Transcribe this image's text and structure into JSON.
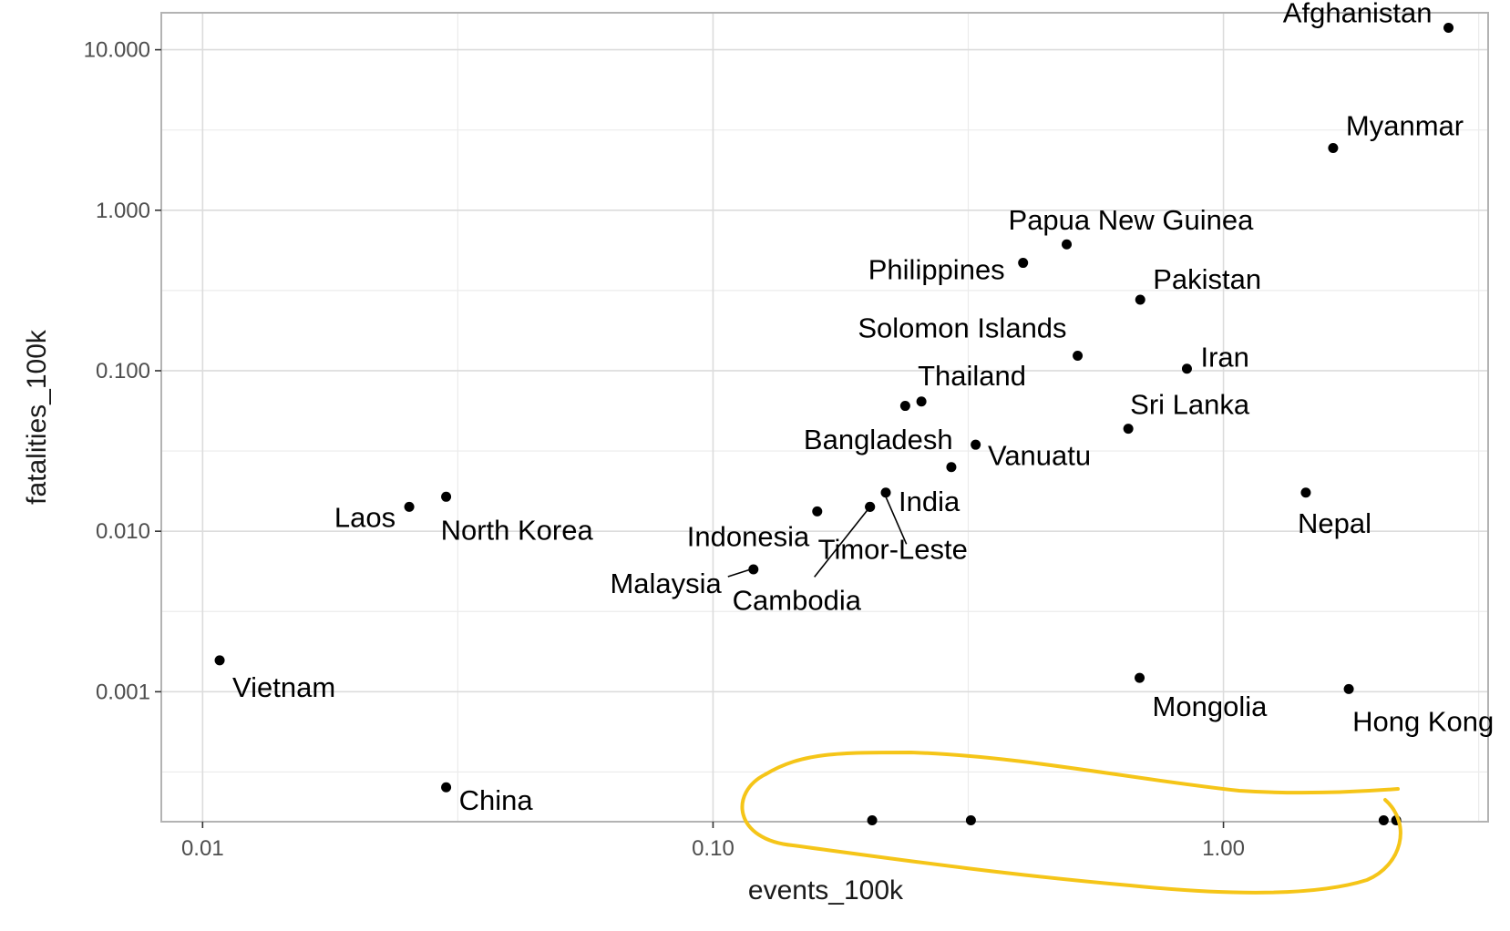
{
  "chart_data": {
    "type": "scatter",
    "title": "",
    "xlabel": "events_100k",
    "ylabel": "fatalities_100k",
    "xscale": "log10",
    "yscale": "log10",
    "xlim": [
      0.0083,
      3.3
    ],
    "ylim": [
      0.000155,
      17
    ],
    "xticks": [
      0.01,
      0.1,
      1.0
    ],
    "xtick_labels": [
      "0.01",
      "0.10",
      "1.00"
    ],
    "yticks": [
      0.001,
      0.01,
      0.1,
      1.0,
      10.0
    ],
    "ytick_labels": [
      "0.001",
      "0.010",
      "0.100",
      "1.000",
      "10.000"
    ],
    "grid": true,
    "theme": "light grey panel border",
    "points": [
      {
        "label": "Afghanistan",
        "x": 2.76,
        "y": 13.7
      },
      {
        "label": "Myanmar",
        "x": 1.64,
        "y": 2.44
      },
      {
        "label": "Papua New Guinea",
        "x": 0.493,
        "y": 0.613
      },
      {
        "label": "Philippines",
        "x": 0.405,
        "y": 0.47
      },
      {
        "label": "Pakistan",
        "x": 0.687,
        "y": 0.277
      },
      {
        "label": "Solomon Islands",
        "x": 0.518,
        "y": 0.124
      },
      {
        "label": "Iran",
        "x": 0.848,
        "y": 0.103
      },
      {
        "label": "Thailand",
        "x": 0.256,
        "y": 0.0643
      },
      {
        "label": "",
        "x": 0.238,
        "y": 0.0604
      },
      {
        "label": "Sri Lanka",
        "x": 0.651,
        "y": 0.0435
      },
      {
        "label": "Bangladesh",
        "x": 0.327,
        "y": 0.0346
      },
      {
        "label": "Vanuatu",
        "x": 0.293,
        "y": 0.0251
      },
      {
        "label": "India",
        "x": 0.218,
        "y": 0.0174
      },
      {
        "label": "Cambodia",
        "x": 0.203,
        "y": 0.0142
      },
      {
        "label": "Timor-Leste",
        "x": 0.203,
        "y": 0.0142
      },
      {
        "label": "Indonesia",
        "x": 0.16,
        "y": 0.0133
      },
      {
        "label": "Nepal",
        "x": 1.45,
        "y": 0.0174
      },
      {
        "label": "Laos",
        "x": 0.0254,
        "y": 0.0142
      },
      {
        "label": "North Korea",
        "x": 0.03,
        "y": 0.0164
      },
      {
        "label": "Malaysia",
        "x": 0.12,
        "y": 0.00579
      },
      {
        "label": "Vietnam",
        "x": 0.0108,
        "y": 0.00157
      },
      {
        "label": "Mongolia",
        "x": 0.685,
        "y": 0.00122
      },
      {
        "label": "Hong Kong",
        "x": 1.76,
        "y": 0.00104
      },
      {
        "label": "China",
        "x": 0.03,
        "y": 0.000254
      },
      {
        "label": "",
        "x": 0.205,
        "y": 0.000158
      },
      {
        "label": "",
        "x": 0.32,
        "y": 0.000158
      },
      {
        "label": "",
        "x": 2.06,
        "y": 0.000158
      },
      {
        "label": "",
        "x": 2.18,
        "y": 0.000158
      }
    ],
    "annotations": [
      {
        "type": "freehand-ellipse",
        "color": "#f5c518",
        "note": "yellow highlight around points at the bottom axis"
      }
    ]
  }
}
